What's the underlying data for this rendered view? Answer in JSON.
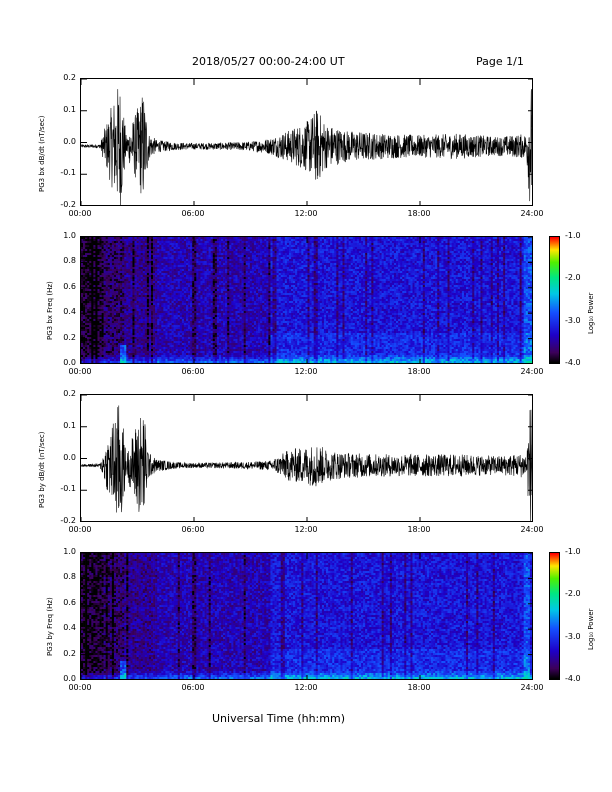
{
  "header": {
    "date_range": "2018/05/27  00:00-24:00 UT",
    "page": "Page 1/1"
  },
  "footer": {
    "xlabel": "Universal Time (hh:mm)"
  },
  "colorbar": {
    "ticks": [
      "-1.0",
      "-2.0",
      "-3.0",
      "-4.0"
    ],
    "label": "Log₁₀ Power"
  },
  "chart_data": [
    {
      "type": "line",
      "ylabel": "PG3 bx dB/dt (nT/sec)",
      "ylim": [
        -0.2,
        0.2
      ],
      "yticks": [
        "0.2",
        "0.1",
        "0.0",
        "-0.1",
        "-0.2"
      ],
      "xticks": [
        "00:00",
        "06:00",
        "12:00",
        "18:00",
        "24:00"
      ],
      "xlim": [
        0,
        24
      ],
      "baseline": -0.01,
      "amplitude_profile": {
        "x": [
          0,
          1,
          2,
          2.1,
          2.4,
          3,
          3.3,
          3.6,
          4,
          5,
          6,
          8,
          9,
          10,
          11,
          12,
          12.5,
          13,
          14,
          16,
          18,
          20,
          22,
          23,
          23.6,
          23.8,
          24
        ],
        "amplitude": [
          0.005,
          0.006,
          0.2,
          0.2,
          0.03,
          0.12,
          0.18,
          0.04,
          0.02,
          0.012,
          0.01,
          0.012,
          0.015,
          0.025,
          0.05,
          0.08,
          0.12,
          0.07,
          0.05,
          0.04,
          0.035,
          0.04,
          0.03,
          0.035,
          0.04,
          0.2,
          0.2
        ]
      }
    },
    {
      "type": "heatmap",
      "ylabel": "PG3 bx Freq (Hz)",
      "ylim": [
        0,
        1
      ],
      "yticks": [
        "1.0",
        "0.8",
        "0.6",
        "0.4",
        "0.2",
        "0.0"
      ],
      "xticks": [
        "00:00",
        "06:00",
        "12:00",
        "18:00",
        "24:00"
      ],
      "xlim": [
        0,
        24
      ],
      "zlim": [
        -4,
        -1
      ],
      "zlabel": "Log₁₀ Power"
    },
    {
      "type": "line",
      "ylabel": "PG3 by dB/dt (nT/sec)",
      "ylim": [
        -0.2,
        0.2
      ],
      "yticks": [
        "0.2",
        "0.1",
        "0.0",
        "-0.1",
        "-0.2"
      ],
      "xticks": [
        "00:00",
        "06:00",
        "12:00",
        "18:00",
        "24:00"
      ],
      "xlim": [
        0,
        24
      ],
      "baseline": -0.02,
      "amplitude_profile": {
        "x": [
          0,
          1,
          2,
          2.1,
          2.4,
          3,
          3.3,
          3.6,
          4,
          5,
          6,
          8,
          9,
          10,
          10.5,
          11,
          12,
          12.5,
          13,
          14,
          16,
          18,
          20,
          22,
          23,
          23.6,
          23.8,
          24
        ],
        "amplitude": [
          0.004,
          0.005,
          0.2,
          0.2,
          0.03,
          0.15,
          0.18,
          0.04,
          0.02,
          0.01,
          0.008,
          0.01,
          0.012,
          0.015,
          0.03,
          0.05,
          0.06,
          0.07,
          0.05,
          0.04,
          0.035,
          0.035,
          0.035,
          0.03,
          0.035,
          0.04,
          0.2,
          0.2
        ]
      }
    },
    {
      "type": "heatmap",
      "ylabel": "PG3 by Freq (Hz)",
      "ylim": [
        0,
        1
      ],
      "yticks": [
        "1.0",
        "0.8",
        "0.6",
        "0.4",
        "0.2",
        "0.0"
      ],
      "xticks": [
        "00:00",
        "06:00",
        "12:00",
        "18:00",
        "24:00"
      ],
      "xlim": [
        0,
        24
      ],
      "zlim": [
        -4,
        -1
      ],
      "zlabel": "Log₁₀ Power"
    }
  ]
}
